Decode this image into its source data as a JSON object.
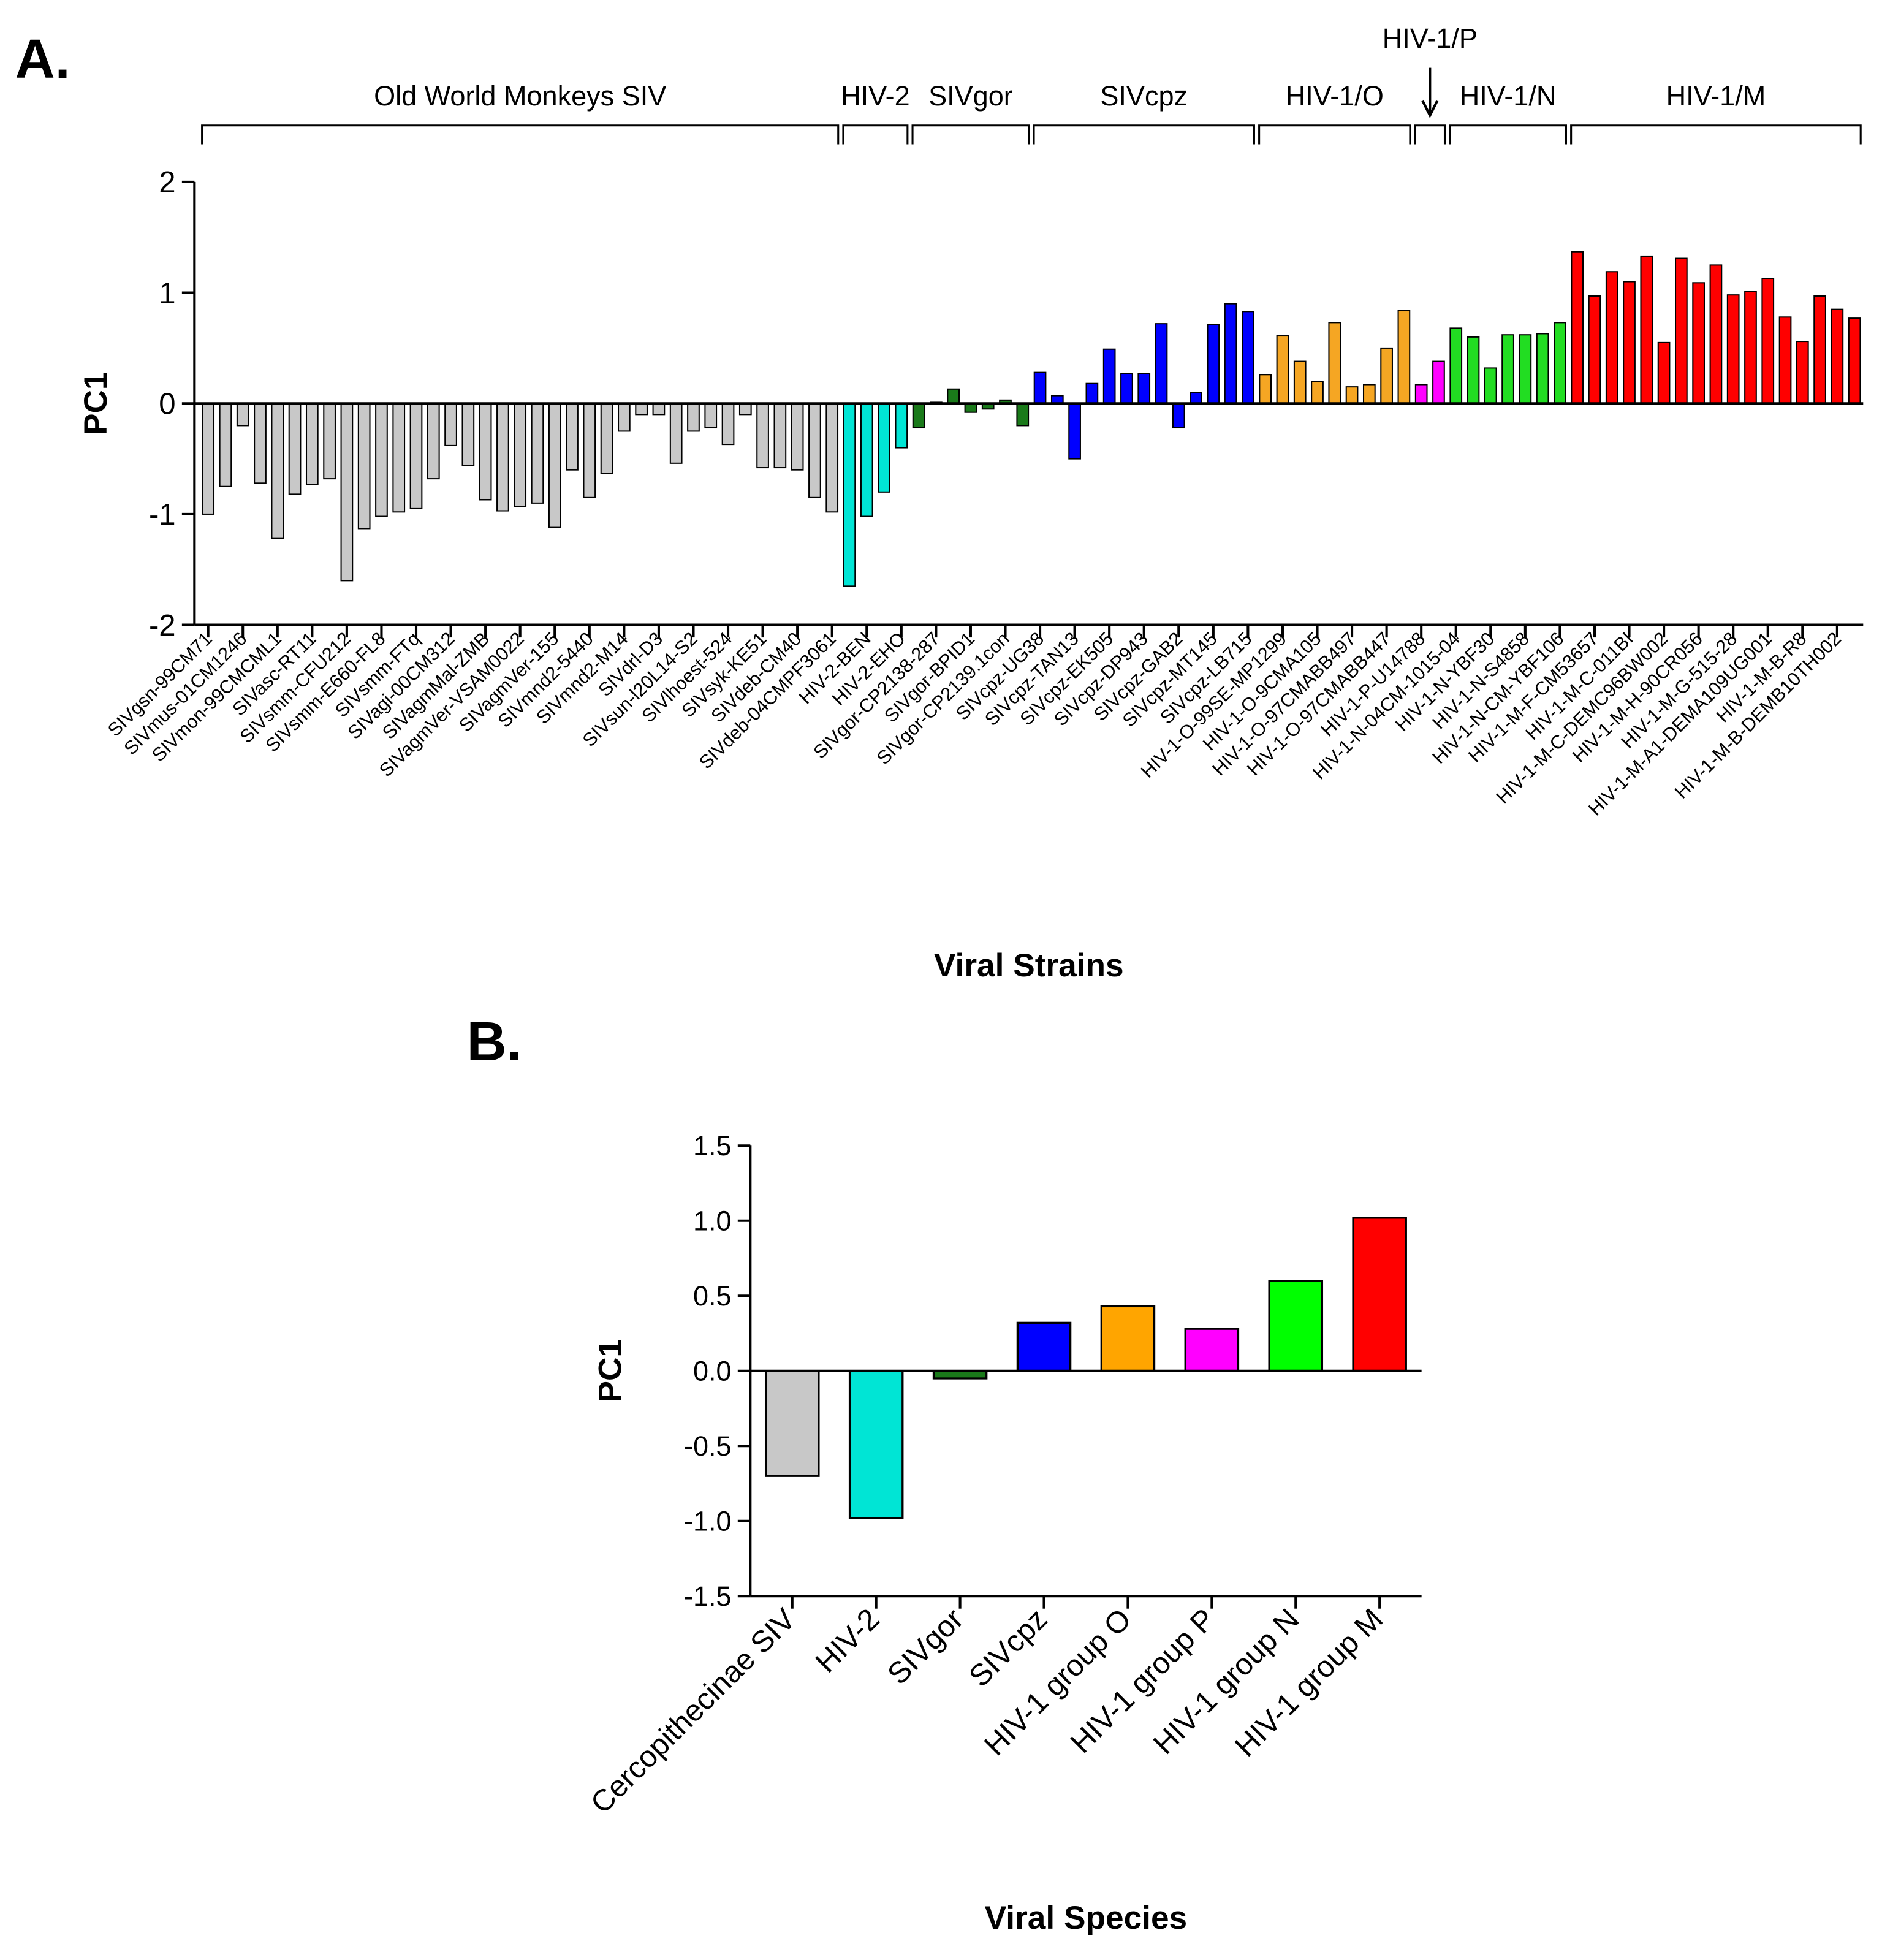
{
  "chart_data": [
    {
      "type": "bar",
      "panel_label": "A.",
      "ylabel": "PC1",
      "xlabel": "Viral Strains",
      "ylim": [
        -2,
        2
      ],
      "yticks": [
        -2,
        -1,
        0,
        1,
        2
      ],
      "series": [
        {
          "name": "Old World Monkeys SIV",
          "color": "#c8c8c8",
          "categories": [
            "SIVgsn-99CM71",
            null,
            "SIVmus-01CM1246",
            null,
            "SIVmon-99CMCML1",
            null,
            "SIVasc-RT11",
            null,
            "SIVsmm-CFU212",
            null,
            "SIVsmm-E660-FL8",
            null,
            "SIVsmm-FTq",
            null,
            "SIVagi-00CM312",
            null,
            "SIVagmMal-ZMB",
            null,
            "SIVagmVer-VSAM0022",
            null,
            "SIVagmVer-155",
            null,
            "SIVmnd2-5440",
            null,
            "SIVmnd2-M14",
            null,
            "SIVdrl-D3",
            null,
            "SIVsun-l20L14-S2",
            null,
            "SIVlhoest-524",
            null,
            "SIVsyk-KE51",
            null,
            "SIVdeb-CM40",
            null,
            "SIVdeb-04CMPF3061"
          ],
          "values": [
            -1.0,
            -0.75,
            -0.2,
            -0.72,
            -1.22,
            -0.82,
            -0.73,
            -0.68,
            -1.6,
            -1.13,
            -1.02,
            -0.98,
            -0.95,
            -0.68,
            -0.38,
            -0.56,
            -0.87,
            -0.97,
            -0.93,
            -0.9,
            -1.12,
            -0.6,
            -0.85,
            -0.63,
            -0.25,
            -0.1,
            -0.1,
            -0.54,
            -0.25,
            -0.22,
            -0.37,
            -0.1,
            -0.58,
            -0.58,
            -0.6,
            -0.85,
            -0.98
          ]
        },
        {
          "name": "HIV-2",
          "color": "#00e5d5",
          "categories": [
            null,
            "HIV-2-BEN",
            null,
            "HIV-2-EHO"
          ],
          "values": [
            -1.65,
            -1.02,
            -0.8,
            -0.4
          ]
        },
        {
          "name": "SIVgor",
          "color": "#1a7a1a",
          "categories": [
            null,
            "SIVgor-CP2138-287",
            null,
            "SIVgor-BPID1",
            null,
            "SIVgor-CP2139.1con",
            null
          ],
          "values": [
            -0.22,
            0.01,
            0.13,
            -0.08,
            -0.05,
            0.03,
            -0.2
          ]
        },
        {
          "name": "SIVcpz",
          "color": "#0000ff",
          "categories": [
            "SIVcpz-UG38",
            null,
            "SIVcpz-TAN13",
            null,
            "SIVcpz-EK505",
            null,
            "SIVcpz-DP943",
            null,
            "SIVcpz-GAB2",
            null,
            "SIVcpz-MT145",
            null,
            "SIVcpz-LB715"
          ],
          "values": [
            0.28,
            0.07,
            -0.5,
            0.18,
            0.49,
            0.27,
            0.27,
            0.72,
            -0.22,
            0.1,
            0.71,
            0.9,
            0.83
          ]
        },
        {
          "name": "HIV-1/O",
          "color": "#f5a623",
          "categories": [
            null,
            "HIV-1-O-99SE-MP1299",
            null,
            "HIV-1-O-9CMA105",
            null,
            "HIV-1-O-97CMABB497",
            null,
            "HIV-1-O-97CMABB447",
            null
          ],
          "values": [
            0.26,
            0.61,
            0.38,
            0.2,
            0.73,
            0.15,
            0.17,
            0.5,
            0.84
          ]
        },
        {
          "name": "HIV-1/P",
          "color": "#ff00ff",
          "categories": [
            "HIV-1-P-U14788",
            null
          ],
          "values": [
            0.17,
            0.38
          ]
        },
        {
          "name": "HIV-1/N",
          "color": "#22dd22",
          "categories": [
            "HIV-1-N-04CM-1015-04",
            null,
            "HIV-1-N-YBF30",
            null,
            "HIV-1-N-S4858",
            null,
            "HIV-1-N-CM-YBF106"
          ],
          "values": [
            0.68,
            0.6,
            0.32,
            0.62,
            0.62,
            0.63,
            0.73
          ]
        },
        {
          "name": "HIV-1/M",
          "color": "#ff0000",
          "categories": [
            null,
            "HIV-1-M-F-CM53657",
            null,
            "HIV-1-M-C-011BI",
            null,
            "HIV-1-M-C-DEMC96BW002",
            null,
            "HIV-1-M-H-90CR056",
            null,
            "HIV-1-M-G-515-28",
            null,
            "HIV-1-M-A1-DEMA109UG001",
            null,
            "HIV-1-M-B-R8",
            null,
            "HIV-1-M-B-DEMB10TH002",
            null
          ],
          "values": [
            1.37,
            0.97,
            1.19,
            1.1,
            1.33,
            0.55,
            1.31,
            1.09,
            1.25,
            0.98,
            1.01,
            1.13,
            0.78,
            0.56,
            0.97,
            0.85,
            0.77
          ]
        }
      ]
    },
    {
      "type": "bar",
      "panel_label": "B.",
      "ylabel": "PC1",
      "xlabel": "Viral Species",
      "ylim": [
        -1.5,
        1.5
      ],
      "yticks": [
        1.5,
        {
          "value": 1,
          "label": "1.0"
        },
        0.5,
        {
          "value": 0,
          "label": "0.0"
        },
        -0.5,
        {
          "value": -1,
          "label": "-1.0"
        },
        -1.5
      ],
      "categories": [
        "Cercopithecinae SIV",
        "HIV-2",
        "SIVgor",
        "SIVcpz",
        "HIV-1 group O",
        "HIV-1 group P",
        "HIV-1 group N",
        "HIV-1 group M"
      ],
      "values": [
        -0.7,
        -0.98,
        -0.05,
        0.32,
        0.43,
        0.28,
        0.6,
        1.02
      ],
      "colors": [
        "#c8c8c8",
        "#00e5d5",
        "#1a7a1a",
        "#0000ff",
        "#ffa500",
        "#ff00ff",
        "#00ff00",
        "#ff0000"
      ]
    }
  ]
}
